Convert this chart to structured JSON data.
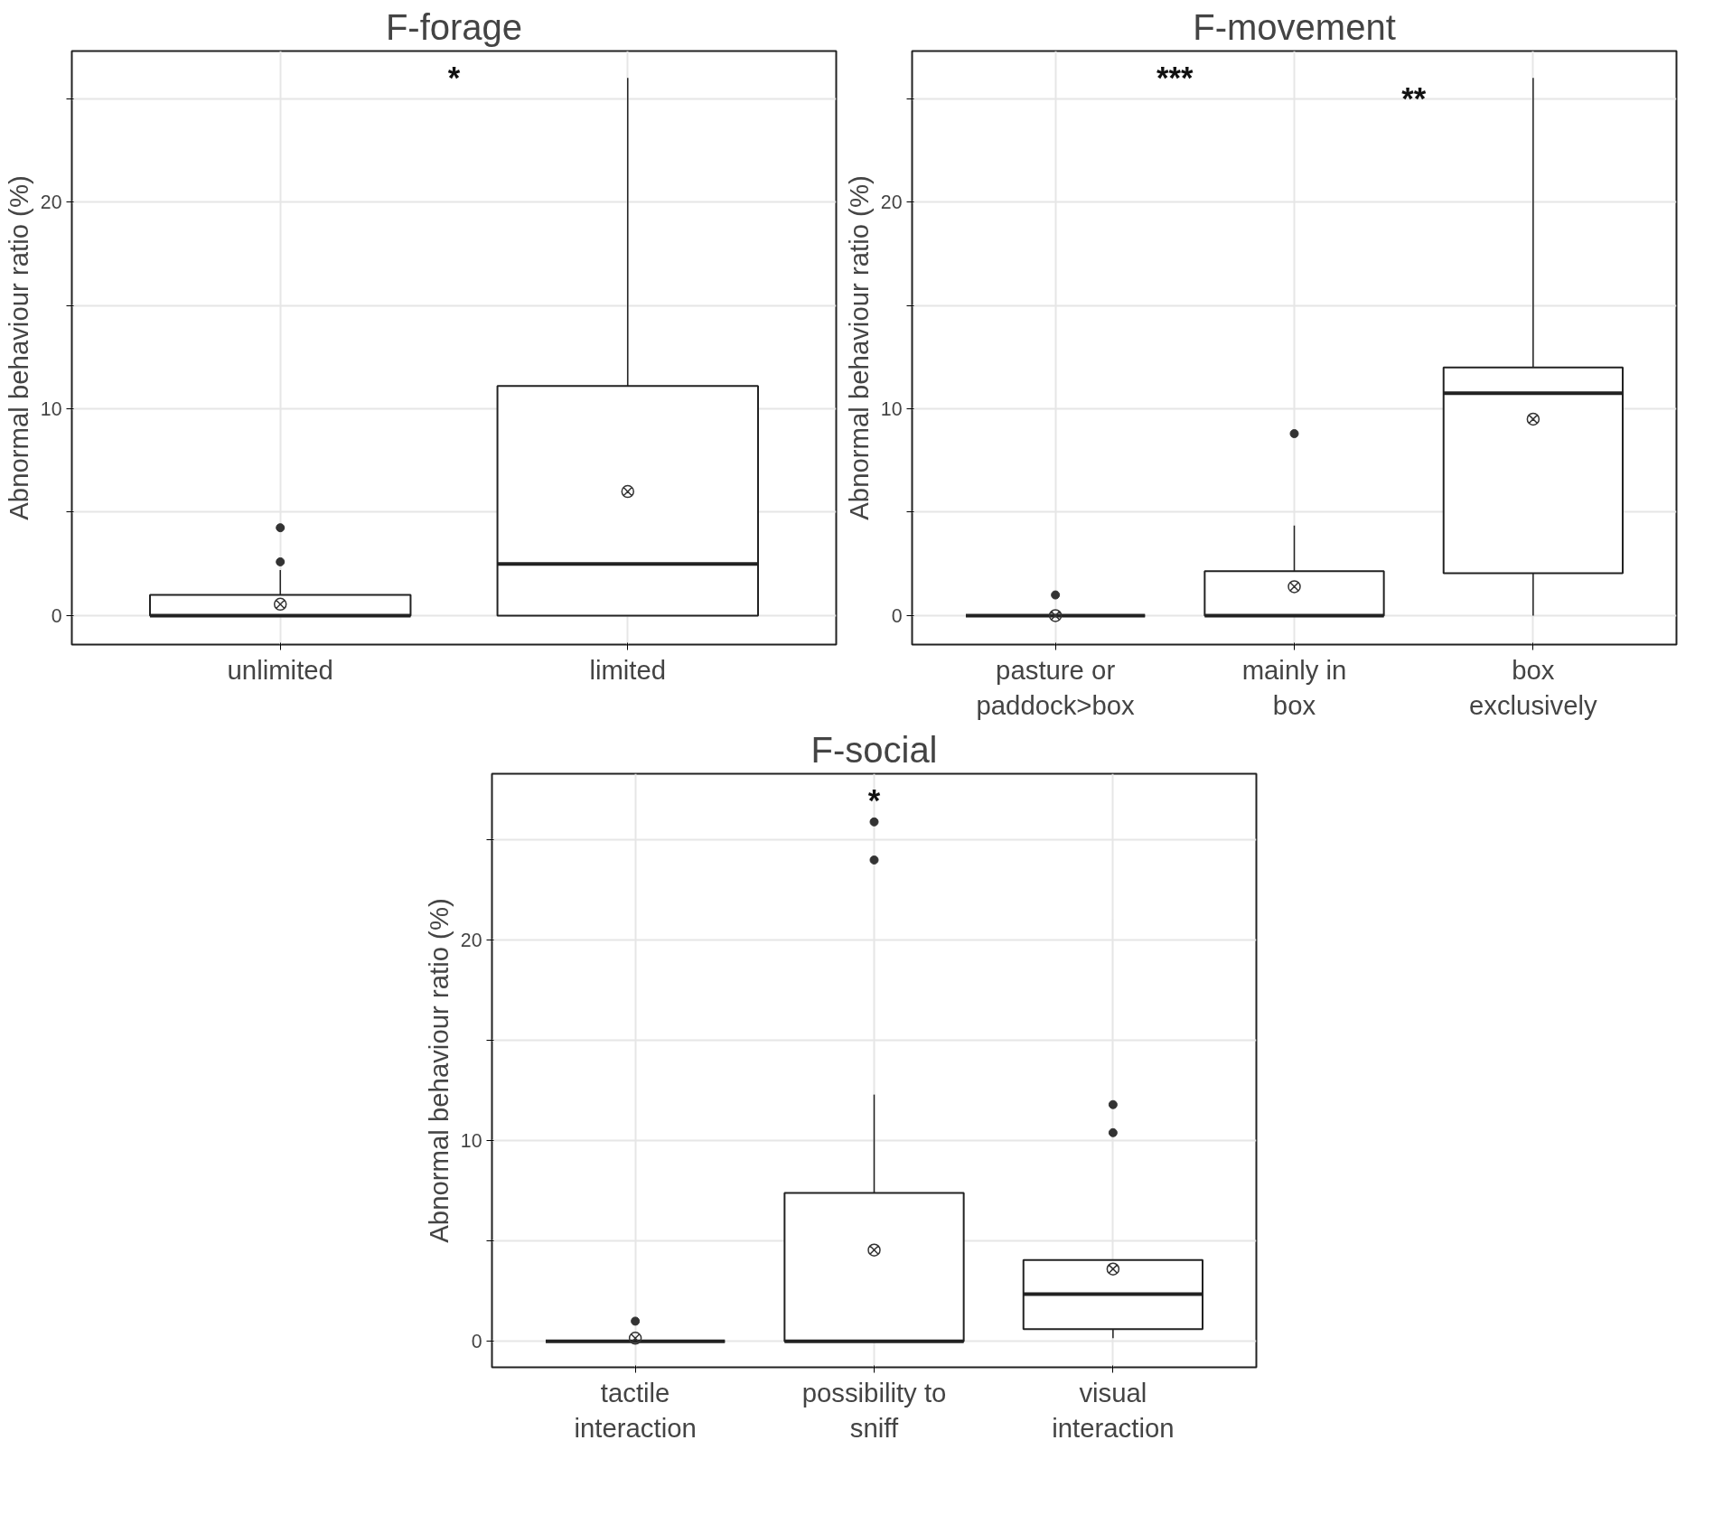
{
  "chart_data": [
    {
      "type": "box",
      "title": "F-forage",
      "ylabel": "Abnormal behaviour ratio (%)",
      "categories": [
        "unlimited",
        "limited"
      ],
      "boxes": [
        {
          "low": 0,
          "q1": 0,
          "median": 0,
          "q3": 1.0,
          "high": 2.2,
          "mean": 0.55,
          "outliers": [
            2.6,
            4.25
          ]
        },
        {
          "low": 0,
          "q1": 0,
          "median": 2.5,
          "q3": 11.1,
          "high": 26.0,
          "mean": 6.0
        }
      ],
      "ylim": [
        -1.4,
        27.3
      ],
      "yticks": [
        0,
        {
          "value": 5,
          "label": null
        },
        {
          "value": 10,
          "label": "10"
        },
        {
          "value": 15,
          "label": null
        },
        {
          "value": 20,
          "label": "20"
        },
        {
          "value": 25,
          "label": null
        }
      ],
      "grid": true,
      "annotations": [
        "*"
      ]
    },
    {
      "type": "box",
      "title": "F-movement",
      "ylabel": "Abnormal behaviour ratio (%)",
      "categories": [
        "pasture or\npaddock>box",
        "mainly in\nbox",
        "box\nexclusively"
      ],
      "boxes": [
        {
          "low": 0,
          "q1": 0,
          "median": 0,
          "q3": 0,
          "high": 0,
          "mean": 0,
          "outliers": [
            1.0
          ]
        },
        {
          "low": 0,
          "q1": 0,
          "median": 0,
          "q3": 2.15,
          "high": 4.35,
          "mean": 1.4,
          "outliers": [
            8.8
          ]
        },
        {
          "low": 0,
          "q1": 2.05,
          "median": 10.75,
          "q3": 12.0,
          "high": 26.0,
          "mean": 9.5
        }
      ],
      "ylim": [
        -1.4,
        27.3
      ],
      "yticks": [
        0,
        {
          "value": 5,
          "label": null
        },
        {
          "value": 10,
          "label": "10"
        },
        {
          "value": 15,
          "label": null
        },
        {
          "value": 20,
          "label": "20"
        },
        {
          "value": 25,
          "label": null
        }
      ],
      "grid": true,
      "annotations": [
        "***",
        "**"
      ]
    },
    {
      "type": "box",
      "title": "F-social",
      "ylabel": "Abnormal behaviour ratio (%)",
      "categories": [
        "tactile\ninteraction",
        "possibility to\nsniff",
        "visual\ninteraction"
      ],
      "boxes": [
        {
          "low": 0,
          "q1": 0,
          "median": 0,
          "q3": 0,
          "high": 0,
          "mean": 0.15,
          "outliers": [
            1.0
          ]
        },
        {
          "low": 0,
          "q1": 0,
          "median": 0,
          "q3": 7.4,
          "high": 12.3,
          "mean": 4.55,
          "outliers": [
            24.0,
            25.9
          ]
        },
        {
          "low": 0.15,
          "q1": 0.6,
          "median": 2.35,
          "q3": 4.05,
          "high": 4.05,
          "mean": 3.6,
          "outliers": [
            10.4,
            11.8
          ]
        }
      ],
      "ylim": [
        -1.3,
        28.3
      ],
      "yticks": [
        0,
        {
          "value": 5,
          "label": null
        },
        {
          "value": 10,
          "label": "10"
        },
        {
          "value": 15,
          "label": null
        },
        {
          "value": 20,
          "label": "20"
        },
        {
          "value": 25,
          "label": null
        }
      ],
      "grid": true,
      "annotations": [
        "*"
      ]
    }
  ]
}
